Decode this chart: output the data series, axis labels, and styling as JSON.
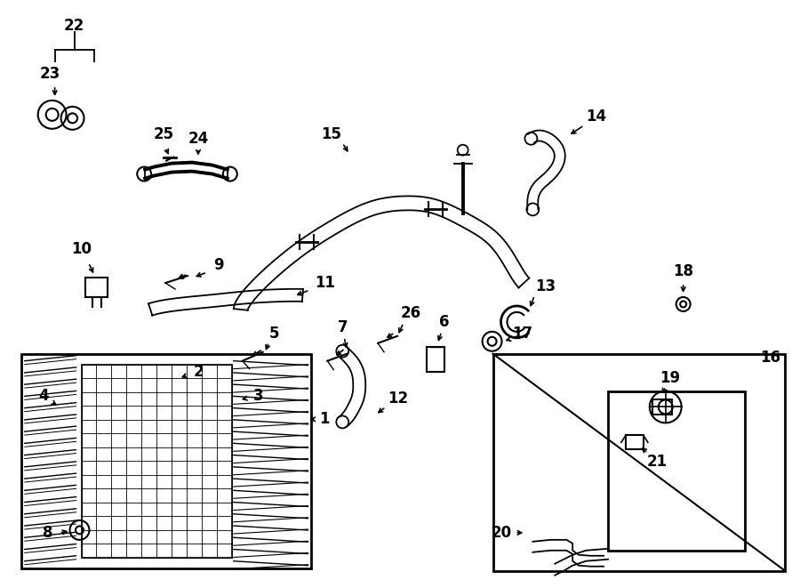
{
  "bg_color": "#ffffff",
  "line_color": "#000000",
  "fig_width": 9.0,
  "fig_height": 6.61,
  "dpi": 100,
  "lw_thin": 0.8,
  "lw_med": 1.3,
  "lw_thick": 2.0,
  "lw_hose": 2.8,
  "fontsize_label": 12,
  "fontsize_title": 10
}
